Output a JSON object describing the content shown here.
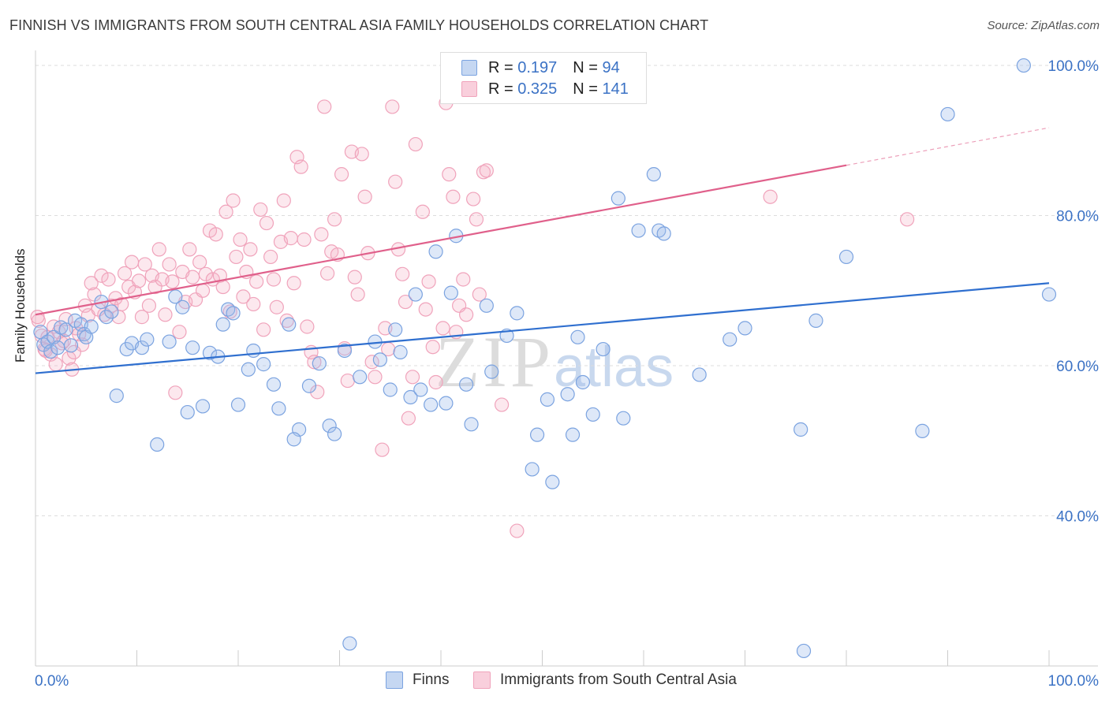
{
  "title": "FINNISH VS IMMIGRANTS FROM SOUTH CENTRAL ASIA FAMILY HOUSEHOLDS CORRELATION CHART",
  "source": "Source: ZipAtlas.com",
  "watermark": {
    "zip": "ZIP",
    "atlas": "atlas"
  },
  "legend_top": {
    "rows": [
      {
        "r_label": "R =",
        "r_value": "0.197",
        "n_label": "N =",
        "n_value": "94",
        "color": "#7ba3e0"
      },
      {
        "r_label": "R =",
        "r_value": "0.325",
        "n_label": "N =",
        "n_value": "141",
        "color": "#f0a3bb"
      }
    ]
  },
  "bottom_legend": {
    "items": [
      {
        "label": "Finns",
        "color": "#7ba3e0"
      },
      {
        "label": "Immigrants from South Central Asia",
        "color": "#f0a3bb"
      }
    ]
  },
  "chart_data": {
    "type": "scatter",
    "title": "FINNISH VS IMMIGRANTS FROM SOUTH CENTRAL ASIA FAMILY HOUSEHOLDS CORRELATION CHART",
    "xlabel": "",
    "ylabel": "Family Households",
    "xlim": [
      0,
      100
    ],
    "ylim": [
      20,
      102
    ],
    "x_tick_labels": [
      "0.0%",
      "100.0%"
    ],
    "y_ticks": [
      40,
      60,
      80,
      100
    ],
    "y_tick_labels": [
      "40.0%",
      "60.0%",
      "80.0%",
      "100.0%"
    ],
    "grid": true,
    "grid_style": "dashed horizontal",
    "legend_position": "top-center",
    "series": [
      {
        "name": "Finns",
        "color": "#7ba3e0",
        "line_color": "#2f6fcf",
        "R": 0.197,
        "N": 94,
        "trend": {
          "x": [
            0,
            100
          ],
          "y": [
            59.0,
            71.0
          ]
        },
        "points": [
          [
            0.5,
            64.5
          ],
          [
            0.8,
            62.8
          ],
          [
            1.2,
            63.2
          ],
          [
            1.5,
            61.9
          ],
          [
            1.8,
            63.8
          ],
          [
            2.2,
            62.4
          ],
          [
            2.5,
            65.1
          ],
          [
            3.0,
            64.8
          ],
          [
            3.5,
            62.7
          ],
          [
            3.9,
            66.0
          ],
          [
            4.5,
            65.5
          ],
          [
            4.8,
            64.2
          ],
          [
            5.0,
            63.8
          ],
          [
            5.5,
            65.2
          ],
          [
            6.5,
            68.5
          ],
          [
            7.0,
            66.5
          ],
          [
            7.5,
            67.2
          ],
          [
            8.0,
            56.0
          ],
          [
            9.0,
            62.2
          ],
          [
            9.5,
            63.0
          ],
          [
            10.5,
            62.4
          ],
          [
            11.0,
            63.5
          ],
          [
            12.0,
            49.5
          ],
          [
            13.2,
            63.2
          ],
          [
            13.8,
            69.2
          ],
          [
            14.5,
            67.8
          ],
          [
            15.0,
            53.8
          ],
          [
            15.5,
            62.4
          ],
          [
            16.5,
            54.6
          ],
          [
            17.2,
            61.7
          ],
          [
            18.0,
            61.2
          ],
          [
            18.5,
            65.5
          ],
          [
            19.0,
            67.5
          ],
          [
            19.5,
            67.0
          ],
          [
            20.0,
            54.8
          ],
          [
            21.0,
            59.5
          ],
          [
            21.5,
            62.0
          ],
          [
            22.5,
            60.2
          ],
          [
            23.5,
            57.5
          ],
          [
            24.0,
            54.3
          ],
          [
            25.0,
            65.5
          ],
          [
            26.0,
            51.5
          ],
          [
            25.5,
            50.2
          ],
          [
            27.0,
            57.3
          ],
          [
            28.0,
            60.3
          ],
          [
            29.0,
            52.0
          ],
          [
            29.5,
            50.9
          ],
          [
            30.5,
            62.0
          ],
          [
            31.0,
            23.0
          ],
          [
            32.0,
            58.5
          ],
          [
            33.5,
            63.2
          ],
          [
            34.0,
            60.8
          ],
          [
            35.0,
            56.8
          ],
          [
            35.5,
            64.8
          ],
          [
            36.0,
            61.8
          ],
          [
            37.0,
            55.8
          ],
          [
            37.5,
            69.5
          ],
          [
            38.0,
            56.8
          ],
          [
            39.0,
            54.8
          ],
          [
            39.5,
            75.2
          ],
          [
            40.5,
            55.0
          ],
          [
            41.0,
            69.7
          ],
          [
            41.5,
            77.3
          ],
          [
            42.5,
            57.5
          ],
          [
            43.0,
            52.2
          ],
          [
            44.5,
            68.0
          ],
          [
            45.0,
            59.2
          ],
          [
            46.5,
            64.0
          ],
          [
            47.5,
            67.0
          ],
          [
            49.0,
            46.2
          ],
          [
            49.5,
            50.8
          ],
          [
            50.5,
            55.5
          ],
          [
            51.0,
            44.5
          ],
          [
            52.5,
            56.2
          ],
          [
            53.0,
            50.8
          ],
          [
            53.5,
            63.8
          ],
          [
            54.0,
            57.8
          ],
          [
            55.0,
            53.5
          ],
          [
            56.0,
            62.2
          ],
          [
            57.5,
            82.3
          ],
          [
            58.0,
            53.0
          ],
          [
            59.5,
            78.0
          ],
          [
            61.0,
            85.5
          ],
          [
            61.5,
            78.0
          ],
          [
            62.0,
            77.6
          ],
          [
            65.5,
            58.8
          ],
          [
            68.5,
            63.5
          ],
          [
            70.0,
            65.0
          ],
          [
            75.5,
            51.5
          ],
          [
            75.8,
            22.0
          ],
          [
            77.0,
            66.0
          ],
          [
            80.0,
            74.5
          ],
          [
            87.5,
            51.3
          ],
          [
            90.0,
            93.5
          ],
          [
            97.5,
            100.0
          ],
          [
            100.0,
            69.5
          ]
        ]
      },
      {
        "name": "Immigrants from South Central Asia",
        "color": "#f0a3bb",
        "line_color": "#e0608b",
        "R": 0.325,
        "N": 141,
        "trend": {
          "x": [
            0,
            80
          ],
          "y": [
            66.8,
            86.7
          ]
        },
        "trend_dashed": {
          "x": [
            80,
            100
          ],
          "y": [
            86.7,
            91.7
          ]
        },
        "points": [
          [
            0.3,
            66.0
          ],
          [
            0.6,
            64.0
          ],
          [
            0.9,
            62.2
          ],
          [
            1.2,
            63.8
          ],
          [
            1.5,
            61.5
          ],
          [
            1.8,
            65.2
          ],
          [
            2.0,
            60.2
          ],
          [
            2.3,
            64.5
          ],
          [
            2.6,
            63.0
          ],
          [
            3.0,
            66.2
          ],
          [
            3.3,
            61.0
          ],
          [
            3.6,
            59.5
          ],
          [
            4.0,
            65.0
          ],
          [
            4.3,
            64.2
          ],
          [
            4.6,
            62.8
          ],
          [
            4.9,
            68.0
          ],
          [
            5.2,
            66.7
          ],
          [
            5.5,
            71.0
          ],
          [
            5.8,
            69.5
          ],
          [
            6.2,
            67.5
          ],
          [
            6.5,
            72.0
          ],
          [
            6.8,
            66.8
          ],
          [
            7.2,
            71.5
          ],
          [
            7.5,
            68.0
          ],
          [
            7.9,
            69.0
          ],
          [
            8.2,
            66.5
          ],
          [
            8.5,
            68.2
          ],
          [
            8.8,
            72.3
          ],
          [
            9.2,
            70.5
          ],
          [
            9.5,
            73.8
          ],
          [
            9.8,
            69.8
          ],
          [
            10.2,
            71.3
          ],
          [
            10.5,
            66.5
          ],
          [
            10.8,
            73.5
          ],
          [
            11.2,
            68.0
          ],
          [
            11.5,
            72.0
          ],
          [
            11.8,
            70.5
          ],
          [
            12.2,
            75.5
          ],
          [
            12.5,
            71.5
          ],
          [
            12.8,
            66.8
          ],
          [
            13.2,
            73.5
          ],
          [
            13.5,
            71.2
          ],
          [
            13.8,
            56.4
          ],
          [
            14.2,
            64.5
          ],
          [
            14.5,
            72.5
          ],
          [
            14.8,
            68.5
          ],
          [
            15.2,
            75.5
          ],
          [
            15.5,
            71.8
          ],
          [
            15.8,
            68.8
          ],
          [
            16.2,
            73.8
          ],
          [
            16.5,
            70.0
          ],
          [
            16.8,
            72.2
          ],
          [
            17.2,
            78.0
          ],
          [
            17.5,
            71.5
          ],
          [
            17.8,
            77.5
          ],
          [
            18.2,
            72.0
          ],
          [
            18.5,
            70.5
          ],
          [
            18.8,
            80.5
          ],
          [
            19.2,
            67.2
          ],
          [
            19.5,
            82.0
          ],
          [
            19.8,
            74.5
          ],
          [
            20.2,
            76.8
          ],
          [
            20.5,
            69.2
          ],
          [
            20.8,
            72.5
          ],
          [
            21.2,
            75.5
          ],
          [
            21.5,
            68.2
          ],
          [
            21.8,
            71.2
          ],
          [
            22.2,
            80.8
          ],
          [
            22.5,
            64.8
          ],
          [
            22.8,
            79.0
          ],
          [
            23.2,
            74.5
          ],
          [
            23.5,
            71.5
          ],
          [
            23.8,
            67.8
          ],
          [
            24.2,
            76.5
          ],
          [
            24.5,
            82.0
          ],
          [
            24.8,
            66.0
          ],
          [
            25.2,
            77.0
          ],
          [
            25.5,
            71.0
          ],
          [
            25.8,
            87.8
          ],
          [
            26.2,
            86.5
          ],
          [
            26.5,
            76.8
          ],
          [
            26.8,
            65.2
          ],
          [
            27.2,
            61.8
          ],
          [
            27.5,
            60.5
          ],
          [
            27.8,
            56.5
          ],
          [
            28.2,
            77.5
          ],
          [
            28.5,
            94.5
          ],
          [
            28.8,
            72.3
          ],
          [
            29.2,
            75.2
          ],
          [
            29.5,
            79.5
          ],
          [
            29.8,
            74.8
          ],
          [
            30.2,
            85.5
          ],
          [
            30.5,
            62.3
          ],
          [
            30.8,
            58.0
          ],
          [
            31.2,
            88.5
          ],
          [
            31.5,
            71.8
          ],
          [
            31.8,
            69.5
          ],
          [
            32.2,
            88.2
          ],
          [
            32.5,
            82.5
          ],
          [
            32.8,
            75.0
          ],
          [
            33.2,
            60.5
          ],
          [
            33.5,
            58.5
          ],
          [
            34.2,
            48.8
          ],
          [
            34.5,
            65.0
          ],
          [
            34.8,
            62.2
          ],
          [
            35.2,
            94.5
          ],
          [
            35.5,
            84.5
          ],
          [
            35.8,
            75.5
          ],
          [
            36.2,
            72.2
          ],
          [
            36.5,
            68.5
          ],
          [
            36.8,
            53.0
          ],
          [
            37.2,
            58.5
          ],
          [
            37.5,
            89.5
          ],
          [
            38.2,
            80.5
          ],
          [
            38.5,
            67.5
          ],
          [
            38.8,
            71.2
          ],
          [
            39.2,
            62.5
          ],
          [
            39.5,
            57.8
          ],
          [
            40.2,
            65.0
          ],
          [
            40.5,
            95.0
          ],
          [
            40.8,
            85.5
          ],
          [
            41.2,
            82.5
          ],
          [
            41.5,
            64.5
          ],
          [
            41.8,
            68.0
          ],
          [
            42.2,
            71.5
          ],
          [
            42.5,
            66.8
          ],
          [
            43.2,
            82.2
          ],
          [
            43.5,
            79.5
          ],
          [
            43.8,
            69.5
          ],
          [
            44.2,
            85.8
          ],
          [
            44.5,
            86.0
          ],
          [
            45.5,
            97.5
          ],
          [
            46.0,
            54.8
          ],
          [
            47.5,
            38.0
          ],
          [
            54.5,
            97.0
          ],
          [
            58.0,
            96.5
          ],
          [
            72.5,
            82.5
          ],
          [
            86.0,
            79.5
          ],
          [
            0.2,
            66.5
          ],
          [
            1.0,
            62.0
          ],
          [
            2.8,
            63.3
          ],
          [
            3.8,
            61.8
          ]
        ]
      }
    ]
  }
}
